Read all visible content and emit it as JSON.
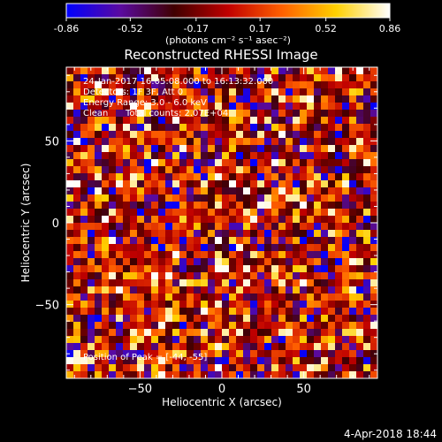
{
  "chart_data": {
    "type": "heatmap",
    "title": "Reconstructed RHESSI Image",
    "xlabel": "Heliocentric X (arcsec)",
    "ylabel": "Heliocentric Y (arcsec)",
    "xlim": [
      -95,
      95
    ],
    "ylim": [
      -95,
      95
    ],
    "x_ticks": [
      -50,
      0,
      50
    ],
    "y_ticks": [
      -50,
      0,
      50
    ],
    "colorbar": {
      "min": -0.86,
      "max": 0.86,
      "tick_values": [
        -0.86,
        -0.52,
        -0.17,
        0.17,
        0.52,
        0.86
      ],
      "tick_labels": [
        "-0.86",
        "-0.52",
        "-0.17",
        "0.17",
        "0.52",
        "0.86"
      ],
      "units_label": "(photons cm⁻² s⁻¹ asec⁻²)",
      "colors": [
        "#0000ff",
        "#5a0aa0",
        "#400000",
        "#c00000",
        "#ff6000",
        "#ffd000",
        "#ffffff"
      ]
    },
    "annotations": {
      "time_range": "24-Jan-2017 16:05:08.000 to 16:13:32.000",
      "detectors": "Detectors: 1F 3F, Att 0",
      "energy": "Energy Range: 3.0 - 6.0 keV",
      "method": "Clean",
      "counts": "Total counts: 2.07E+04",
      "peak": "Position of Peak = [-44, -55]"
    },
    "grid": false
  },
  "footer": {
    "date": "4-Apr-2018 18:44"
  }
}
